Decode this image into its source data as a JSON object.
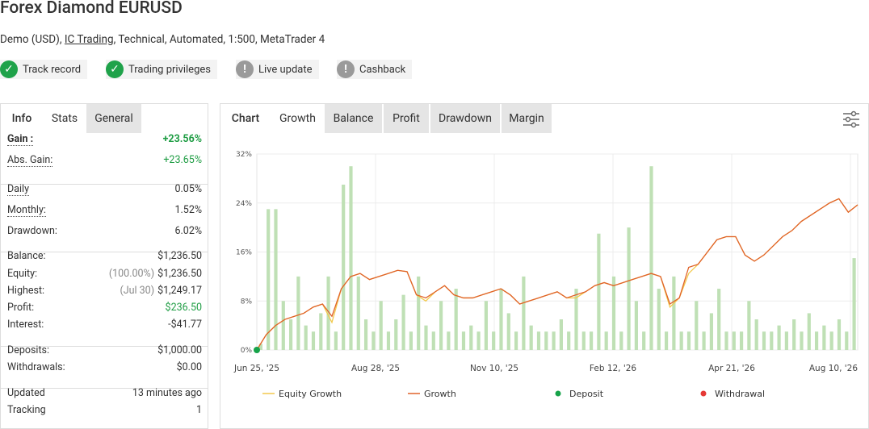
{
  "header": {
    "title": "Forex Diamond EURUSD",
    "subtitle": {
      "prefix": "Demo (USD), ",
      "link": "IC Trading",
      "suffix": ", Technical, Automated, 1:500, MetaTrader 4"
    },
    "badges": [
      {
        "label": "Track record",
        "status": "ok"
      },
      {
        "label": "Trading privileges",
        "status": "ok"
      },
      {
        "label": "Live update",
        "status": "info"
      },
      {
        "label": "Cashback",
        "status": "info"
      }
    ]
  },
  "stats": {
    "tabs": [
      "Info",
      "Stats",
      "General"
    ],
    "groups": [
      [
        {
          "label": "Gain :",
          "value": "+23.56%",
          "color": "#1f9d44",
          "bold": true,
          "dotted": true
        },
        {
          "label": "Abs. Gain:",
          "value": "+23.65%",
          "color": "#1f9d44",
          "dotted": true
        }
      ],
      [
        {
          "label": "Daily",
          "value": "0.05%",
          "dotted": true
        },
        {
          "label": "Monthly:",
          "value": "1.52%",
          "dotted": true
        },
        {
          "label": "Drawdown:",
          "value": "6.02%"
        }
      ],
      [
        {
          "label": "Balance:",
          "value": "$1,236.50"
        },
        {
          "label": "Equity:",
          "note": "(100.00%)",
          "value": "$1,236.50"
        },
        {
          "label": "Highest:",
          "note": "(Jul 30)",
          "value": "$1,249.17"
        },
        {
          "label": "Profit:",
          "value": "$236.50",
          "color": "#1f9d44"
        },
        {
          "label": "Interest:",
          "value": "-$41.77"
        }
      ],
      [
        {
          "label": "Deposits:",
          "value": "$1,000.00"
        },
        {
          "label": "Withdrawals:",
          "value": "$0.00"
        }
      ],
      [
        {
          "label": "Updated",
          "value": "13 minutes ago"
        },
        {
          "label": "Tracking",
          "value": "1"
        }
      ]
    ]
  },
  "chart_tabs": [
    "Chart",
    "Growth",
    "Balance",
    "Profit",
    "Drawdown",
    "Margin"
  ],
  "chart_data": {
    "type": "line",
    "ylim": [
      0,
      32
    ],
    "yticks": [
      {
        "value": 0,
        "label": "0%"
      },
      {
        "value": 8,
        "label": "8%"
      },
      {
        "value": 16,
        "label": "16%"
      },
      {
        "value": 24,
        "label": "24%"
      },
      {
        "value": 32,
        "label": "32%"
      }
    ],
    "x_labels": [
      "Jun 25, '25",
      "Aug 28, '25",
      "Nov 10, '25",
      "Feb 12, '26",
      "Apr 21, '26",
      "Aug 10, '26"
    ],
    "grid": true,
    "bars": {
      "color": "#bfe0b5",
      "values": [
        1,
        23,
        23,
        8,
        5,
        12,
        4,
        3,
        6,
        12,
        3,
        27,
        30,
        12,
        5,
        3,
        8,
        3,
        5,
        9,
        3,
        12,
        4,
        3,
        8,
        3,
        10,
        3,
        4,
        3,
        8,
        3,
        10,
        6,
        3,
        12,
        4,
        3,
        3,
        3,
        5,
        3,
        10,
        3,
        3,
        19,
        3,
        12,
        3,
        20,
        8,
        3,
        30,
        10,
        3,
        12,
        3,
        3,
        8,
        3,
        6,
        10,
        3,
        3,
        3,
        8,
        5,
        3,
        3,
        4,
        3,
        5,
        3,
        6,
        3,
        4,
        3,
        5,
        3,
        15
      ]
    },
    "series": [
      {
        "name": "Equity Growth",
        "color": "#f2c94c",
        "values": [
          0,
          2.5,
          4,
          5,
          5.5,
          6,
          7,
          7.5,
          4.5,
          10,
          12,
          12.5,
          11.5,
          12,
          12.5,
          13,
          12.8,
          9,
          8,
          9.5,
          10.5,
          9,
          8.5,
          8.5,
          9,
          9.5,
          10,
          9,
          7.5,
          8,
          8.5,
          9,
          9.5,
          8.5,
          8.5,
          9.5,
          10.5,
          11,
          10.5,
          11,
          11.5,
          12,
          12.5,
          12,
          7,
          8.5,
          12.5,
          14,
          16,
          18,
          18.5,
          18.5,
          15.5,
          14.5,
          15.5,
          17,
          18.5,
          19.5,
          21,
          22,
          23,
          24,
          24.7,
          22.5,
          23.7
        ]
      },
      {
        "name": "Growth",
        "color": "#e0622a",
        "values": [
          0,
          2.5,
          4,
          5,
          5.5,
          6,
          7,
          7.5,
          5.5,
          10,
          12,
          12.5,
          11.5,
          12,
          12.5,
          13,
          12.8,
          9,
          8.5,
          9.5,
          10.5,
          9,
          8.5,
          8.5,
          9,
          9.5,
          10,
          9,
          7.5,
          8,
          8.5,
          9,
          9.5,
          8.5,
          9,
          9.5,
          10.5,
          11,
          10.5,
          11,
          11.5,
          12,
          12.5,
          12,
          7.5,
          8.5,
          13.5,
          14,
          16,
          18,
          18.5,
          18.5,
          15.5,
          14.5,
          15.5,
          17,
          18.5,
          19.5,
          21,
          22,
          23,
          24,
          24.7,
          22.5,
          23.7
        ]
      }
    ],
    "markers": [
      {
        "name": "Deposit",
        "color": "#17a34a",
        "values": [
          0
        ]
      },
      {
        "name": "Withdrawal",
        "color": "#e53935",
        "values": []
      }
    ]
  }
}
